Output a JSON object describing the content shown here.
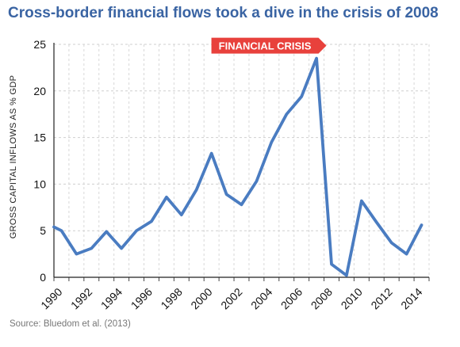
{
  "chart_data": {
    "type": "line",
    "title": "Cross-border financial flows took a dive in the crisis of 2008",
    "ylabel": "GROSS CAPITAL INFLOWS AS % GDP",
    "xlabel": "",
    "source": "Source: Bluedom et al. (2013)",
    "xlim": [
      1990,
      2015
    ],
    "ylim": [
      0,
      25
    ],
    "x_ticks": [
      "1990",
      "1992",
      "1994",
      "1996",
      "1998",
      "2000",
      "2002",
      "2004",
      "2006",
      "2008",
      "2010",
      "2012",
      "2014"
    ],
    "y_ticks": [
      "0",
      "5",
      "10",
      "15",
      "20",
      "25"
    ],
    "grid": true,
    "series": [
      {
        "color": "#4a7cc1",
        "x": [
          1990,
          1990.5,
          1991.5,
          1992.5,
          1993.5,
          1994.5,
          1995.5,
          1996.5,
          1997.5,
          1998.5,
          1999.5,
          2000.5,
          2001.5,
          2002.5,
          2003.5,
          2004.5,
          2005.5,
          2006.5,
          2007.5,
          2008.5,
          2009.5,
          2010.5,
          2011.5,
          2012.5,
          2013.5,
          2014.5
        ],
        "values": [
          5.4,
          5.0,
          2.5,
          3.1,
          4.9,
          3.1,
          5.0,
          6.0,
          8.6,
          6.7,
          9.4,
          13.3,
          8.9,
          7.8,
          10.3,
          14.5,
          17.5,
          19.4,
          23.5,
          1.4,
          0.2,
          8.2,
          5.9,
          3.7,
          2.5,
          5.6
        ]
      }
    ],
    "annotation": {
      "label": "FINANCIAL CRISIS",
      "x": 2008,
      "y": 23.5,
      "color": "#e8413c"
    }
  }
}
